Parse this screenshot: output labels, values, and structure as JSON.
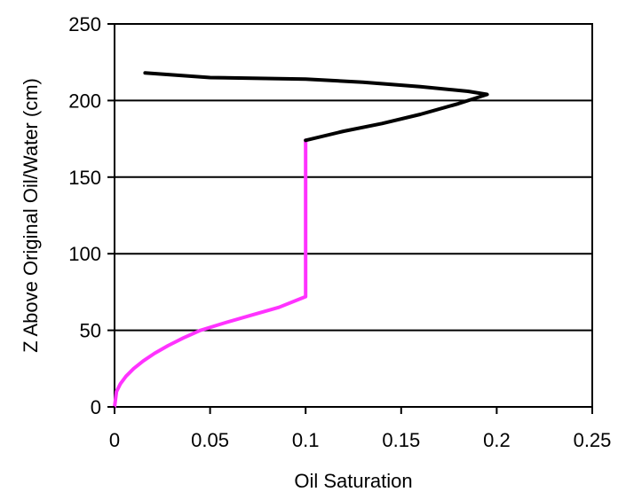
{
  "chart_data": {
    "type": "line",
    "title": "",
    "xlabel": "Oil Saturation",
    "ylabel": "Z Above Original Oil/Water (cm)",
    "xlim": [
      0,
      0.25
    ],
    "ylim": [
      0,
      250
    ],
    "x_ticks": [
      0,
      0.05,
      0.1,
      0.15,
      0.2,
      0.25
    ],
    "x_tick_labels": [
      "0",
      "0.05",
      "0.1",
      "0.15",
      "0.2",
      "0.25"
    ],
    "y_ticks": [
      0,
      50,
      100,
      150,
      200,
      250
    ],
    "y_tick_labels": [
      "0",
      "50",
      "100",
      "150",
      "200",
      "250"
    ],
    "grid": "horizontal",
    "series": [
      {
        "color": "#ff33ff",
        "points": [
          [
            0.0,
            0
          ],
          [
            0.0005,
            5
          ],
          [
            0.001,
            10
          ],
          [
            0.003,
            15
          ],
          [
            0.006,
            20
          ],
          [
            0.01,
            25
          ],
          [
            0.015,
            30
          ],
          [
            0.021,
            35
          ],
          [
            0.028,
            40
          ],
          [
            0.036,
            45
          ],
          [
            0.045,
            50
          ],
          [
            0.058,
            55
          ],
          [
            0.072,
            60
          ],
          [
            0.086,
            65
          ],
          [
            0.1,
            72
          ],
          [
            0.1,
            100
          ],
          [
            0.1,
            150
          ],
          [
            0.1,
            174
          ]
        ]
      },
      {
        "color": "#000000",
        "points": [
          [
            0.1,
            174
          ],
          [
            0.12,
            180
          ],
          [
            0.14,
            185
          ],
          [
            0.16,
            191
          ],
          [
            0.18,
            198
          ],
          [
            0.195,
            204
          ],
          [
            0.185,
            206
          ],
          [
            0.16,
            209
          ],
          [
            0.13,
            212
          ],
          [
            0.1,
            214
          ],
          [
            0.05,
            215
          ],
          [
            0.016,
            218
          ]
        ]
      }
    ]
  }
}
